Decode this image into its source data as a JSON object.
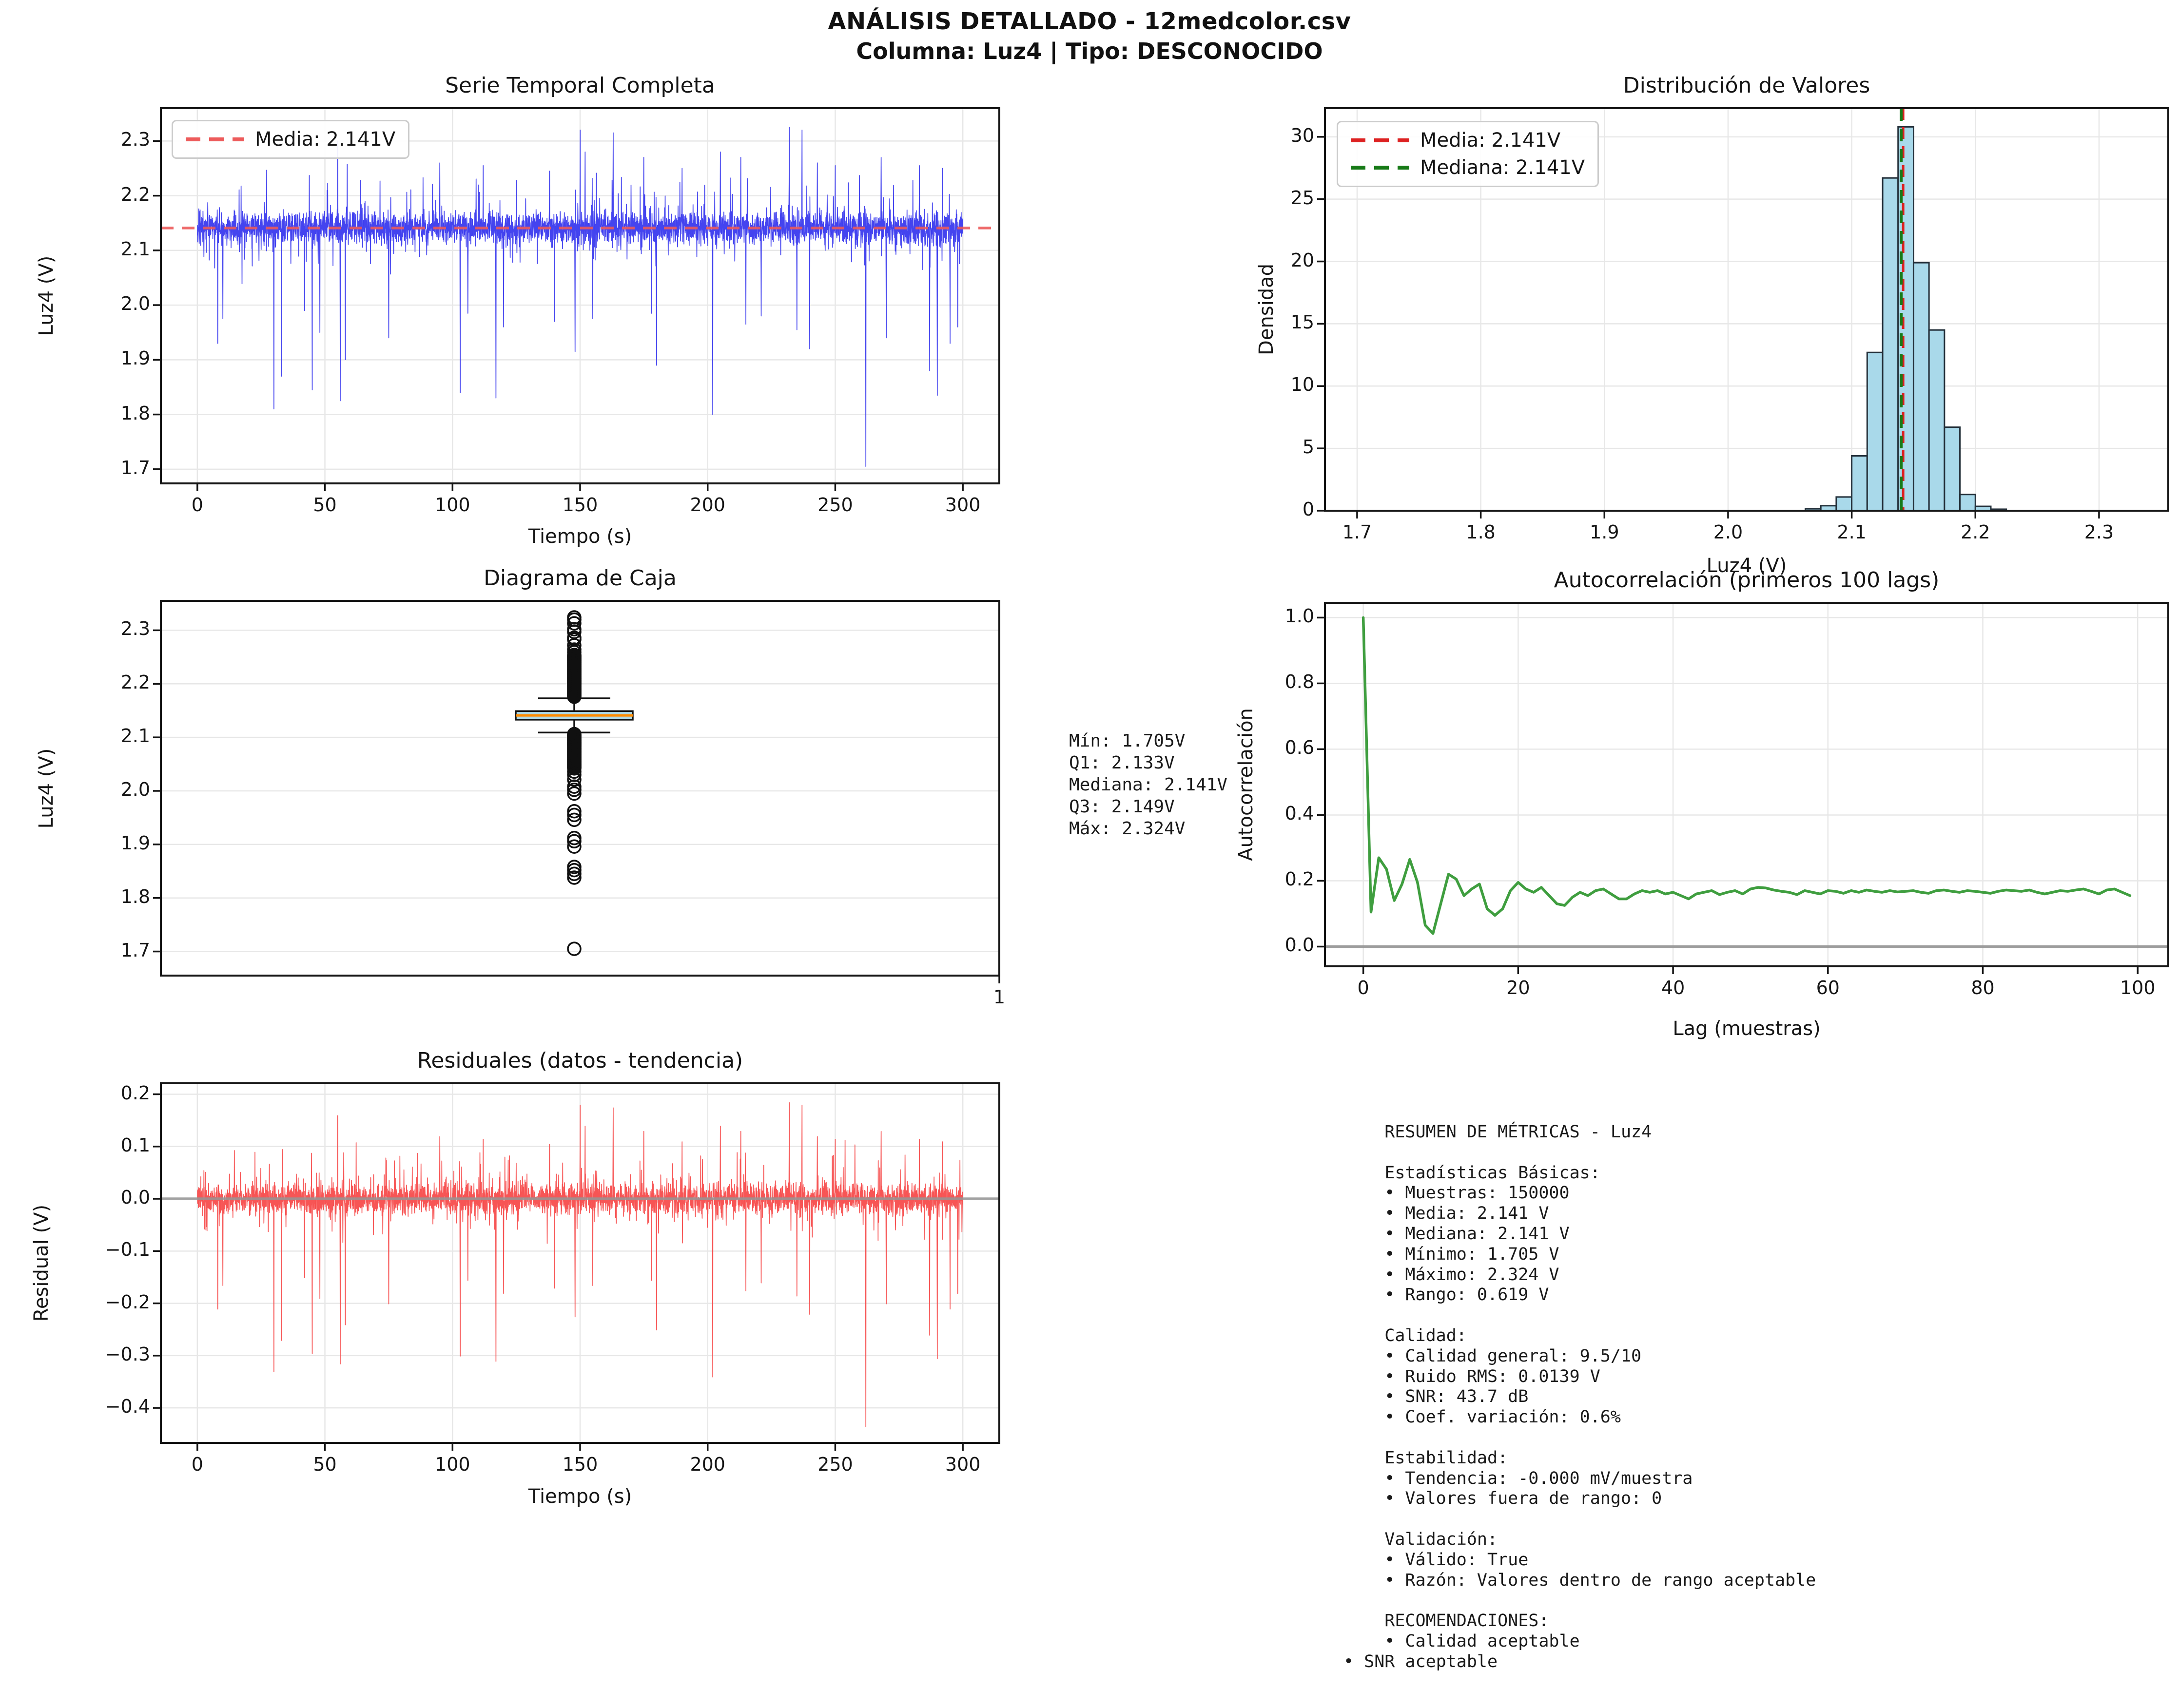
{
  "header": {
    "title_line1": "ANÁLISIS DETALLADO - 12medcolor.csv",
    "title_line2": "Columna: Luz4 | Tipo: DESCONOCIDO"
  },
  "colors": {
    "ts_line": "#3a3aee",
    "mean_dash": "#ed5b5b",
    "hist_fill": "#a9d9ea",
    "hist_edge": "#24303a",
    "hist_mean_line": "#dd2222",
    "hist_median_line": "#177a17",
    "box_fill": "#add8e6",
    "box_edge": "#101010",
    "box_median": "#ff8c00",
    "acf_line": "#3f9e3f",
    "resid_line": "#f74c4c",
    "zero_line": "#969696",
    "grid": "#e7e7e7",
    "spine": "#151515"
  },
  "stats_box": {
    "text": "Mín: 1.705V\nQ1: 2.133V\nMediana: 2.141V\nQ3: 2.149V\nMáx: 2.324V"
  },
  "metrics_box": {
    "text": "    RESUMEN DE MÉTRICAS - Luz4\n    \n    Estadísticas Básicas:\n    • Muestras: 150000\n    • Media: 2.141 V\n    • Mediana: 2.141 V\n    • Mínimo: 1.705 V\n    • Máximo: 2.324 V\n    • Rango: 0.619 V\n    \n    Calidad:\n    • Calidad general: 9.5/10\n    • Ruido RMS: 0.0139 V\n    • SNR: 43.7 dB\n    • Coef. variación: 0.6%\n    \n    Estabilidad:\n    • Tendencia: -0.000 mV/muestra\n    • Valores fuera de rango: 0\n    \n    Validación:\n    • Válido: True\n    • Razón: Valores dentro de rango aceptable\n    \n    RECOMENDACIONES:\n    • Calidad aceptable\n• SNR aceptable"
  },
  "chart_data": [
    {
      "id": "timeseries",
      "type": "line",
      "title": "Serie Temporal Completa",
      "xlabel": "Tiempo (s)",
      "ylabel": "Luz4 (V)",
      "xlim": [
        -14.3,
        314.3
      ],
      "ylim": [
        1.674,
        2.36
      ],
      "xticks": [
        "0",
        "50",
        "100",
        "150",
        "200",
        "250",
        "300"
      ],
      "yticks": [
        "1.7",
        "1.8",
        "1.9",
        "2.0",
        "2.1",
        "2.2",
        "2.3"
      ],
      "legend": [
        {
          "label": "Media: 2.141V",
          "color": "#ed5b5b",
          "dash": true
        }
      ],
      "mean": 2.141,
      "noise_sd": 0.0139,
      "n_points": 4200,
      "seed": 42,
      "spikes_down": [
        [
          8,
          1.93
        ],
        [
          10,
          1.975
        ],
        [
          30,
          1.81
        ],
        [
          33,
          1.87
        ],
        [
          42,
          1.99
        ],
        [
          45,
          1.845
        ],
        [
          48,
          1.95
        ],
        [
          56,
          1.825
        ],
        [
          58,
          1.9
        ],
        [
          75,
          1.94
        ],
        [
          95,
          2.0
        ],
        [
          103,
          1.84
        ],
        [
          106,
          1.985
        ],
        [
          117,
          1.83
        ],
        [
          120,
          1.96
        ],
        [
          140,
          1.97
        ],
        [
          148,
          1.915
        ],
        [
          155,
          1.975
        ],
        [
          178,
          1.985
        ],
        [
          180,
          1.89
        ],
        [
          202,
          1.8
        ],
        [
          215,
          1.965
        ],
        [
          221,
          1.98
        ],
        [
          235,
          1.955
        ],
        [
          240,
          1.92
        ],
        [
          262,
          1.705
        ],
        [
          270,
          1.94
        ],
        [
          287,
          1.88
        ],
        [
          290,
          1.835
        ],
        [
          295,
          1.93
        ],
        [
          298,
          1.96
        ]
      ],
      "spikes_up": [
        [
          55,
          2.3
        ],
        [
          95,
          2.26
        ],
        [
          112,
          2.255
        ],
        [
          138,
          2.245
        ],
        [
          150,
          2.32
        ],
        [
          152,
          2.28
        ],
        [
          163,
          2.315
        ],
        [
          175,
          2.27
        ],
        [
          190,
          2.25
        ],
        [
          205,
          2.28
        ],
        [
          213,
          2.27
        ],
        [
          232,
          2.325
        ],
        [
          237,
          2.32
        ],
        [
          243,
          2.26
        ],
        [
          250,
          2.255
        ],
        [
          268,
          2.27
        ],
        [
          283,
          2.255
        ],
        [
          292,
          2.25
        ]
      ]
    },
    {
      "id": "histogram",
      "type": "bar",
      "title": "Distribución de Valores",
      "xlabel": "Luz4 (V)",
      "ylabel": "Densidad",
      "xlim": [
        1.674,
        2.356
      ],
      "ylim": [
        0,
        32.3
      ],
      "xticks": [
        "1.7",
        "1.8",
        "1.9",
        "2.0",
        "2.1",
        "2.2",
        "2.3"
      ],
      "yticks": [
        "0",
        "5",
        "10",
        "15",
        "20",
        "25",
        "30"
      ],
      "bin_width": 0.0125,
      "bin_lefts": [
        2.0625,
        2.075,
        2.0875,
        2.1,
        2.1125,
        2.125,
        2.1375,
        2.15,
        2.1625,
        2.175,
        2.1875,
        2.2,
        2.2125
      ],
      "densities": [
        0.15,
        0.4,
        1.1,
        4.4,
        12.7,
        26.7,
        30.8,
        19.9,
        14.5,
        6.7,
        1.3,
        0.35,
        0.12
      ],
      "mean_line": 2.1416,
      "median_line": 2.14,
      "legend": [
        {
          "label": "Media: 2.141V",
          "color": "#dd2222",
          "dash": true
        },
        {
          "label": "Mediana: 2.141V",
          "color": "#177a17",
          "dash": true
        }
      ]
    },
    {
      "id": "boxplot",
      "type": "box",
      "title": "Diagrama de Caja",
      "ylabel": "Luz4 (V)",
      "xticks": [
        "1"
      ],
      "ylim": [
        1.655,
        2.355
      ],
      "yticks": [
        "1.7",
        "1.8",
        "1.9",
        "2.0",
        "2.1",
        "2.2",
        "2.3"
      ],
      "q1": 2.133,
      "median": 2.141,
      "q3": 2.149,
      "whisker_low": 2.109,
      "whisker_high": 2.173,
      "outliers_upper_dense": {
        "from": 2.176,
        "to": 2.254,
        "count": 65
      },
      "outliers_upper": [
        2.259,
        2.264,
        2.272,
        2.283,
        2.286,
        2.297,
        2.302,
        2.313,
        2.32,
        2.324
      ],
      "outliers_lower_dense": {
        "from": 2.042,
        "to": 2.106,
        "count": 55
      },
      "outliers_lower": [
        2.036,
        2.03,
        2.021,
        2.008,
        2.002,
        1.995,
        1.962,
        1.955,
        1.946,
        1.912,
        1.906,
        1.896,
        1.858,
        1.852,
        1.845,
        1.838,
        1.705
      ]
    },
    {
      "id": "acf",
      "type": "line",
      "title": "Autocorrelación (primeros 100 lags)",
      "xlabel": "Lag (muestras)",
      "ylabel": "Autocorrelación",
      "xlim": [
        -4.95,
        103.95
      ],
      "ylim": [
        -0.06,
        1.045
      ],
      "xticks": [
        "0",
        "20",
        "40",
        "60",
        "80",
        "100"
      ],
      "yticks": [
        "0.0",
        "0.2",
        "0.4",
        "0.6",
        "0.8",
        "1.0"
      ],
      "zero_line": 0,
      "values": [
        1.0,
        0.105,
        0.27,
        0.235,
        0.14,
        0.19,
        0.265,
        0.195,
        0.065,
        0.04,
        0.13,
        0.22,
        0.205,
        0.155,
        0.175,
        0.19,
        0.115,
        0.095,
        0.115,
        0.17,
        0.195,
        0.175,
        0.165,
        0.18,
        0.155,
        0.13,
        0.125,
        0.15,
        0.165,
        0.155,
        0.17,
        0.175,
        0.16,
        0.145,
        0.145,
        0.16,
        0.17,
        0.165,
        0.17,
        0.16,
        0.165,
        0.155,
        0.145,
        0.16,
        0.165,
        0.17,
        0.158,
        0.165,
        0.17,
        0.16,
        0.175,
        0.18,
        0.178,
        0.172,
        0.168,
        0.165,
        0.158,
        0.17,
        0.165,
        0.16,
        0.17,
        0.168,
        0.162,
        0.17,
        0.165,
        0.172,
        0.168,
        0.165,
        0.17,
        0.166,
        0.168,
        0.17,
        0.165,
        0.162,
        0.17,
        0.172,
        0.168,
        0.165,
        0.17,
        0.168,
        0.165,
        0.162,
        0.168,
        0.172,
        0.17,
        0.168,
        0.172,
        0.165,
        0.16,
        0.165,
        0.17,
        0.168,
        0.172,
        0.175,
        0.168,
        0.16,
        0.172,
        0.175,
        0.165,
        0.155
      ]
    },
    {
      "id": "residuals",
      "type": "line",
      "title": "Residuales (datos - tendencia)",
      "xlabel": "Tiempo (s)",
      "ylabel": "Residual (V)",
      "xlim": [
        -14.3,
        314.3
      ],
      "ylim": [
        -0.467,
        0.221
      ],
      "xticks": [
        "0",
        "50",
        "100",
        "150",
        "200",
        "250",
        "300"
      ],
      "yticks": [
        "0.2",
        "0.1",
        "0.0",
        "−0.1",
        "−0.2",
        "−0.3",
        "−0.4"
      ],
      "ytick_values": [
        0.2,
        0.1,
        0.0,
        -0.1,
        -0.2,
        -0.3,
        -0.4
      ],
      "noise_sd": 0.0139,
      "n_points": 4200,
      "seed": 7,
      "zero_line": 0
    }
  ]
}
